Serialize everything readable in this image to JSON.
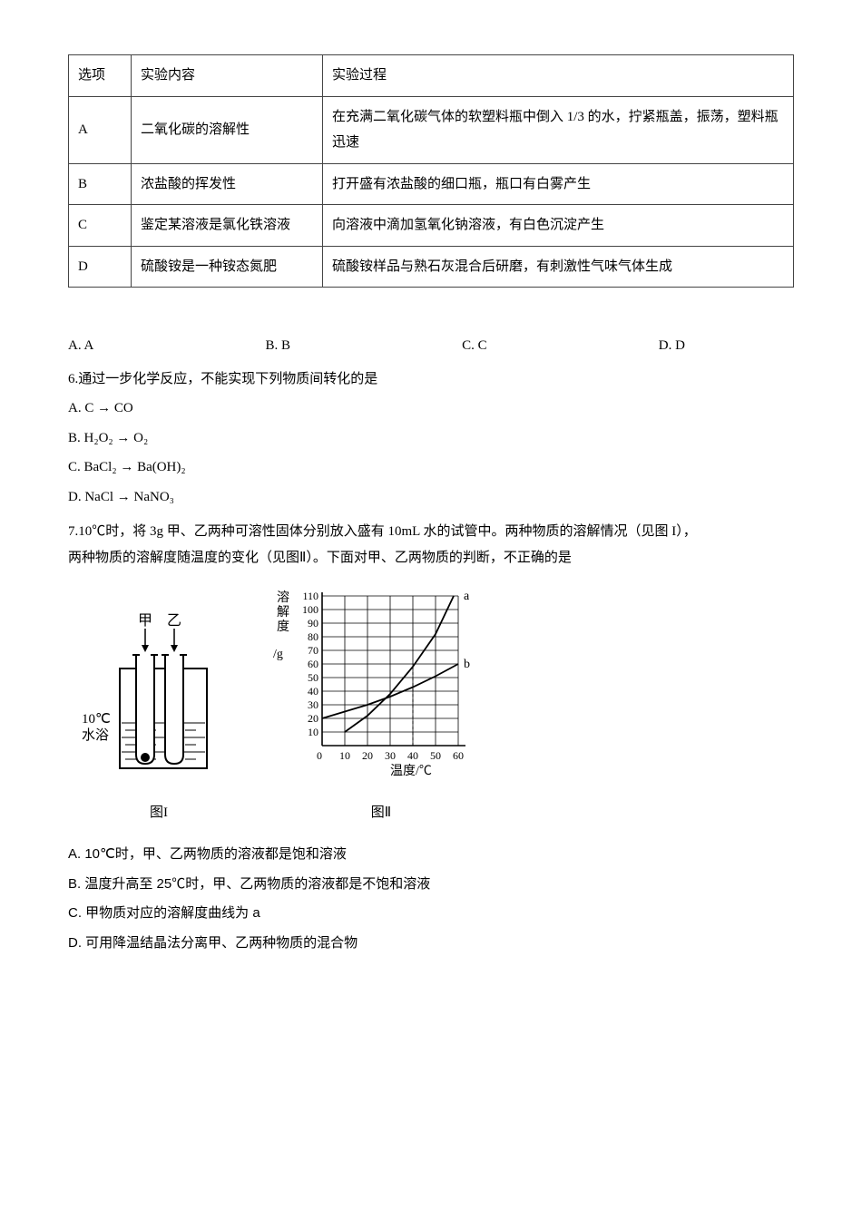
{
  "table": {
    "headers": [
      "选项",
      "实验内容",
      "实验过程"
    ],
    "rows": [
      [
        "A",
        "二氧化碳的溶解性",
        "在充满二氧化碳气体的软塑料瓶中倒入 1/3 的水，拧紧瓶盖，振荡，塑料瓶迅速"
      ],
      [
        "B",
        "浓盐酸的挥发性",
        "打开盛有浓盐酸的细口瓶，瓶口有白雾产生"
      ],
      [
        "C",
        "鉴定某溶液是氯化铁溶液",
        "向溶液中滴加氢氧化钠溶液，有白色沉淀产生"
      ],
      [
        "D",
        "硫酸铵是一种铵态氮肥",
        "硫酸铵样品与熟石灰混合后研磨，有刺激性气味气体生成"
      ]
    ]
  },
  "q5_options": {
    "a": "A. A",
    "b": "B. B",
    "c": "C. C",
    "d": "D. D"
  },
  "q6": {
    "stem": "6.通过一步化学反应，不能实现下列物质间转化的是",
    "a": "A.  C → CO",
    "b": "B.  H₂O₂ → O₂",
    "c": "C.  BaCl₂ → Ba(OH)₂",
    "d": "D.  NaCl → NaNO₃"
  },
  "q7": {
    "stem1": "7.10℃时，将 3g 甲、乙两种可溶性固体分别放入盛有 10mL 水的试管中。两种物质的溶解情况（见图 I），",
    "stem2": "两种物质的溶解度随温度的变化（见图Ⅱ）。下面对甲、乙两物质的判断，不正确的是",
    "a": "A. 10℃时，甲、乙两物质的溶液都是饱和溶液",
    "b": "B.  温度升高至 25℃时，甲、乙两物质的溶液都是不饱和溶液",
    "c": "C.  甲物质对应的溶解度曲线为 a",
    "d": "D.  可用降温结晶法分离甲、乙两种物质的混合物"
  },
  "fig1": {
    "caption": "图I",
    "label_jia": "甲",
    "label_yi": "乙",
    "temp_label1": "10℃",
    "temp_label2": "水浴"
  },
  "fig2": {
    "caption": "图Ⅱ",
    "y_label": "溶解度",
    "y_unit": "/g",
    "x_label": "温度/℃",
    "x_ticks": [
      "0",
      "10",
      "20",
      "30",
      "40",
      "50",
      "60"
    ],
    "y_ticks": [
      "10",
      "20",
      "30",
      "40",
      "50",
      "60",
      "70",
      "80",
      "90",
      "100",
      "110"
    ],
    "series_a_label": "a",
    "series_b_label": "b",
    "grid_color": "#000000",
    "line_color": "#000000",
    "curve_a": [
      [
        10,
        10
      ],
      [
        20,
        22
      ],
      [
        30,
        38
      ],
      [
        40,
        58
      ],
      [
        50,
        82
      ],
      [
        58,
        110
      ]
    ],
    "curve_b": [
      [
        0,
        20
      ],
      [
        10,
        25
      ],
      [
        20,
        30
      ],
      [
        30,
        36
      ],
      [
        40,
        43
      ],
      [
        50,
        51
      ],
      [
        60,
        60
      ]
    ],
    "dash_x": 40,
    "xlim": [
      0,
      60
    ],
    "ylim": [
      0,
      110
    ]
  }
}
